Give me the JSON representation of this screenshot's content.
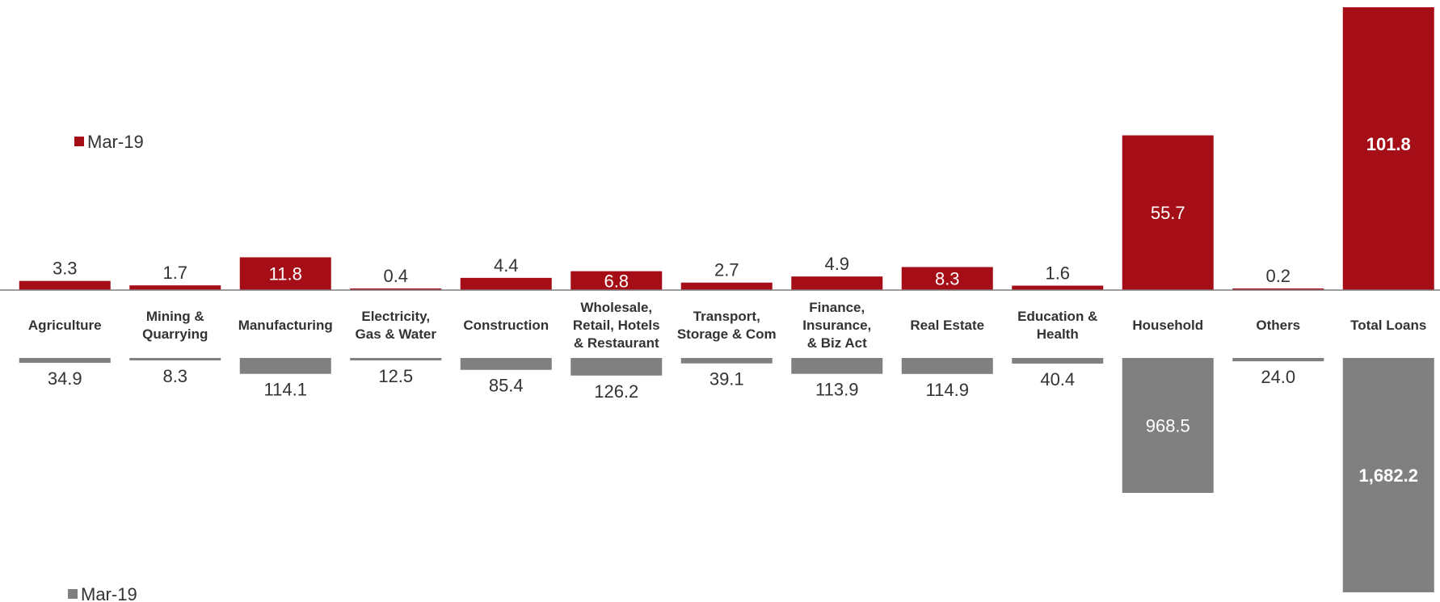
{
  "chart_data": {
    "type": "bar",
    "categories": [
      [
        "Agriculture"
      ],
      [
        "Mining &",
        "Quarrying"
      ],
      [
        "Manufacturing"
      ],
      [
        "Electricity,",
        "Gas & Water"
      ],
      [
        "Construction"
      ],
      [
        "Wholesale,",
        "Retail, Hotels",
        "& Restaurant"
      ],
      [
        "Transport,",
        "Storage & Com"
      ],
      [
        "Finance,",
        "Insurance,",
        "& Biz Act"
      ],
      [
        "Real Estate"
      ],
      [
        "Education &",
        "Health"
      ],
      [
        "Household"
      ],
      [
        "Others"
      ],
      [
        "Total Loans"
      ]
    ],
    "series": [
      {
        "name": "Mar-19",
        "direction": "up",
        "color": "#A50E16",
        "values": [
          3.3,
          1.7,
          11.8,
          0.4,
          4.4,
          6.8,
          2.7,
          4.9,
          8.3,
          1.6,
          55.7,
          0.2,
          101.8
        ],
        "labels": [
          "3.3",
          "1.7",
          "11.8",
          "0.4",
          "4.4",
          "6.8",
          "2.7",
          "4.9",
          "8.3",
          "1.6",
          "55.7",
          "0.2",
          "101.8"
        ]
      },
      {
        "name": "Mar-19",
        "direction": "down",
        "color": "#808080",
        "values": [
          34.9,
          8.3,
          114.1,
          12.5,
          85.4,
          126.2,
          39.1,
          113.9,
          114.9,
          40.4,
          968.5,
          24.0,
          1682.2
        ],
        "labels": [
          "34.9",
          "8.3",
          "114.1",
          "12.5",
          "85.4",
          "126.2",
          "39.1",
          "113.9",
          "114.9",
          "40.4",
          "968.5",
          "24.0",
          "1,682.2"
        ]
      }
    ],
    "legend": [
      "top-left",
      "bottom-left"
    ],
    "grid": false
  }
}
